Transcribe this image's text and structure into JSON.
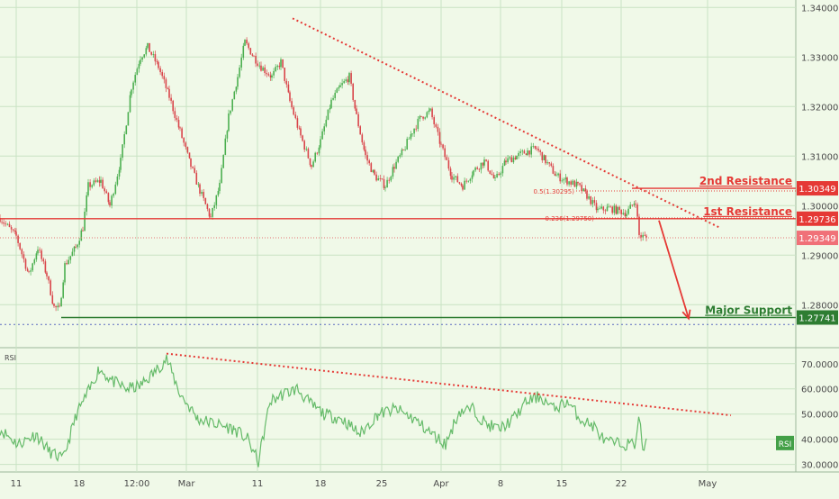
{
  "colors": {
    "background": "#f0f9e8",
    "up_candle": "#4caf50",
    "down_candle": "#d9454a",
    "resistance": "#e53935",
    "support": "#2e7d32",
    "trendline": "#e53935",
    "rsi_line": "#66bb6a",
    "current_price_bg": "#f07178",
    "grid": "#c9e3c3",
    "axis_text": "#4a4a4a"
  },
  "chart_data": [
    {
      "type": "candlestick",
      "title": "",
      "x_axis": {
        "ticks": [
          "11",
          "18",
          "12:00",
          "Mar",
          "11",
          "18",
          "25",
          "Apr",
          "8",
          "15",
          "22",
          "May"
        ]
      },
      "y_axis": {
        "ylim": [
          1.2715,
          1.3415
        ],
        "ticks": [
          "1.34000",
          "1.33000",
          "1.32000",
          "1.31000",
          "1.30000",
          "1.29000",
          "1.28000"
        ],
        "grid": true
      },
      "price_series": {
        "start_close": 1.2975,
        "bars": 340,
        "keypoints": [
          [
            0,
            1.2975
          ],
          [
            18,
            1.2938
          ],
          [
            32,
            1.286
          ],
          [
            42,
            1.2915
          ],
          [
            52,
            1.286
          ],
          [
            60,
            1.2795
          ],
          [
            66,
            1.279
          ],
          [
            72,
            1.288
          ],
          [
            84,
            1.2915
          ],
          [
            92,
            1.2955
          ],
          [
            98,
            1.304
          ],
          [
            112,
            1.305
          ],
          [
            122,
            1.3
          ],
          [
            134,
            1.309
          ],
          [
            146,
            1.324
          ],
          [
            156,
            1.33
          ],
          [
            164,
            1.332
          ],
          [
            176,
            1.328
          ],
          [
            188,
            1.322
          ],
          [
            200,
            1.315
          ],
          [
            212,
            1.308
          ],
          [
            222,
            1.303
          ],
          [
            234,
            1.2975
          ],
          [
            244,
            1.304
          ],
          [
            254,
            1.318
          ],
          [
            264,
            1.326
          ],
          [
            272,
            1.333
          ],
          [
            282,
            1.33
          ],
          [
            290,
            1.328
          ],
          [
            302,
            1.326
          ],
          [
            312,
            1.329
          ],
          [
            322,
            1.321
          ],
          [
            334,
            1.314
          ],
          [
            346,
            1.308
          ],
          [
            356,
            1.313
          ],
          [
            368,
            1.321
          ],
          [
            378,
            1.324
          ],
          [
            388,
            1.326
          ],
          [
            396,
            1.318
          ],
          [
            406,
            1.31
          ],
          [
            416,
            1.306
          ],
          [
            428,
            1.304
          ],
          [
            438,
            1.308
          ],
          [
            448,
            1.311
          ],
          [
            458,
            1.315
          ],
          [
            468,
            1.318
          ],
          [
            478,
            1.319
          ],
          [
            490,
            1.312
          ],
          [
            502,
            1.306
          ],
          [
            514,
            1.304
          ],
          [
            526,
            1.307
          ],
          [
            538,
            1.309
          ],
          [
            550,
            1.305
          ],
          [
            562,
            1.309
          ],
          [
            574,
            1.31
          ],
          [
            586,
            1.311
          ],
          [
            596,
            1.3115
          ],
          [
            606,
            1.309
          ],
          [
            618,
            1.306
          ],
          [
            630,
            1.305
          ],
          [
            642,
            1.304
          ],
          [
            652,
            1.302
          ],
          [
            664,
            1.299
          ],
          [
            676,
            1.2995
          ],
          [
            686,
            1.299
          ],
          [
            696,
            1.2985
          ],
          [
            706,
            1.301
          ],
          [
            710,
            1.294
          ],
          [
            718,
            1.2935
          ]
        ],
        "current": "1.29349"
      },
      "levels": [
        {
          "label": "2nd Resistance",
          "price": 1.30349,
          "value_label": "1.30349",
          "style": "solid"
        },
        {
          "label": "1st Resistance",
          "price": 1.29736,
          "value_label": "1.29736",
          "style": "solid"
        },
        {
          "label": "Major Support",
          "price": 1.27741,
          "value_label": "1.27741",
          "style": "solid"
        }
      ],
      "support_dotted": 1.276,
      "current_dotted": 1.29349,
      "fib": [
        {
          "label": "0.5(1.30295)",
          "price": 1.30295
        },
        {
          "label": "0.236(1.29750)",
          "price": 1.2975
        }
      ],
      "trendline": {
        "from": [
          325,
          1.3378
        ],
        "to": [
          800,
          1.2955
        ]
      },
      "arrow": {
        "from": [
          732,
          1.297
        ],
        "to": [
          765,
          1.2772
        ]
      }
    },
    {
      "type": "line",
      "title": "",
      "pane_label": "RSI",
      "y_axis": {
        "ylim": [
          27,
          76
        ],
        "ticks": [
          "70.0000",
          "60.0000",
          "50.0000",
          "40.0000",
          "30.0000"
        ],
        "grid": true
      },
      "rsi_keypoints": [
        [
          0,
          44
        ],
        [
          20,
          38
        ],
        [
          40,
          42
        ],
        [
          55,
          35
        ],
        [
          70,
          32
        ],
        [
          85,
          50
        ],
        [
          100,
          60
        ],
        [
          110,
          68
        ],
        [
          125,
          63
        ],
        [
          140,
          60
        ],
        [
          155,
          61
        ],
        [
          170,
          66
        ],
        [
          185,
          72
        ],
        [
          200,
          58
        ],
        [
          220,
          48
        ],
        [
          240,
          46
        ],
        [
          260,
          44
        ],
        [
          275,
          40
        ],
        [
          287,
          31
        ],
        [
          300,
          55
        ],
        [
          315,
          58
        ],
        [
          330,
          60
        ],
        [
          345,
          54
        ],
        [
          360,
          50
        ],
        [
          380,
          48
        ],
        [
          400,
          42
        ],
        [
          420,
          50
        ],
        [
          440,
          52
        ],
        [
          460,
          48
        ],
        [
          480,
          42
        ],
        [
          495,
          38
        ],
        [
          510,
          51
        ],
        [
          525,
          52
        ],
        [
          540,
          46
        ],
        [
          555,
          44
        ],
        [
          570,
          48
        ],
        [
          585,
          55
        ],
        [
          600,
          57
        ],
        [
          615,
          52
        ],
        [
          630,
          55
        ],
        [
          645,
          48
        ],
        [
          660,
          45
        ],
        [
          672,
          39
        ],
        [
          690,
          38
        ],
        [
          705,
          38
        ],
        [
          710,
          49
        ],
        [
          714,
          36
        ],
        [
          718,
          38
        ]
      ],
      "current_label": "RSI",
      "trendline": {
        "from": [
          185,
          74
        ],
        "to": [
          812,
          49.5
        ]
      }
    }
  ],
  "right_axis_labels": {
    "resistance2": "1.30349",
    "resistance1": "1.29736",
    "current": "1.29349",
    "support": "1.27741",
    "rsi_current": "RSI"
  }
}
